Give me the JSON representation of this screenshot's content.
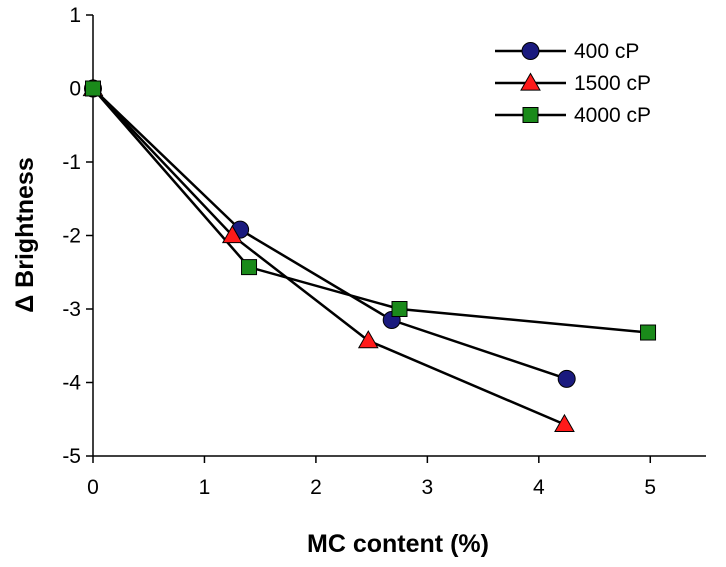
{
  "chart_data": {
    "type": "line",
    "title": "",
    "xlabel": "MC content (%)",
    "ylabel": "Δ Brightness",
    "xlim": [
      0,
      5.5
    ],
    "ylim": [
      -5,
      1
    ],
    "xticks": [
      0,
      1,
      2,
      3,
      4,
      5
    ],
    "xtick_labels": [
      "0",
      "1",
      "2",
      "3",
      "4",
      "5"
    ],
    "yticks": [
      1,
      0,
      -1,
      -2,
      -3,
      -4,
      -5
    ],
    "ytick_labels": [
      "1",
      "0",
      "-1",
      "-2",
      "-3",
      "-4",
      "-5"
    ],
    "grid": false,
    "legend_position": "top-right",
    "series": [
      {
        "name": "400 cP",
        "marker": "circle",
        "color": "#1a1a7e",
        "x": [
          0,
          1.32,
          2.68,
          4.25
        ],
        "y": [
          0,
          -1.92,
          -3.15,
          -3.95
        ]
      },
      {
        "name": "1500 cP",
        "marker": "triangle",
        "color": "#ff1a1a",
        "x": [
          0,
          1.25,
          2.47,
          4.23
        ],
        "y": [
          0,
          -2.0,
          -3.43,
          -4.57
        ]
      },
      {
        "name": "4000 cP",
        "marker": "square",
        "color": "#1a8a1a",
        "x": [
          0,
          1.4,
          2.75,
          4.98
        ],
        "y": [
          0,
          -2.43,
          -3.0,
          -3.32
        ]
      }
    ]
  }
}
